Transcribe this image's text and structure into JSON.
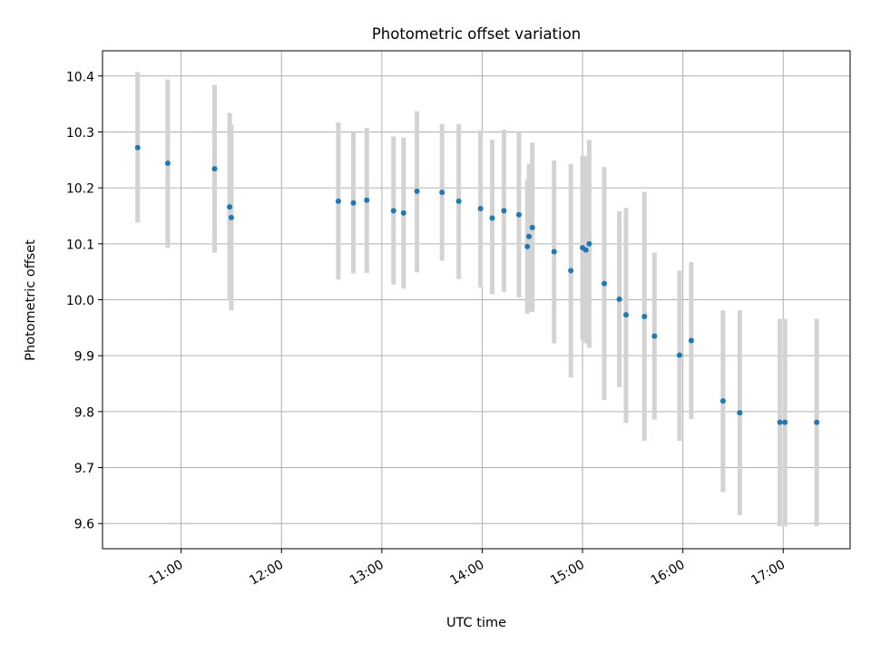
{
  "chart_data": {
    "type": "scatter",
    "title": "Photometric offset variation",
    "xlabel": "UTC time",
    "ylabel": "Photometric offset",
    "xlim": [
      "10:13",
      "17:40"
    ],
    "ylim": [
      9.555,
      10.445
    ],
    "grid": true,
    "legend": "none",
    "x_ticks": [
      "11:00",
      "12:00",
      "13:00",
      "14:00",
      "15:00",
      "16:00",
      "17:00"
    ],
    "y_ticks": [
      "9.6",
      "9.7",
      "9.8",
      "9.9",
      "10.0",
      "10.1",
      "10.2",
      "10.3",
      "10.4"
    ],
    "colors": {
      "point": "#1f77b4",
      "errorbar": "#d3d3d3",
      "grid": "#b0b0b0"
    },
    "series": [
      {
        "points": [
          {
            "x": "10:34",
            "y": 10.272,
            "err": [
              10.138,
              10.407
            ]
          },
          {
            "x": "10:52",
            "y": 10.244,
            "err": [
              10.093,
              10.394
            ]
          },
          {
            "x": "11:20",
            "y": 10.234,
            "err": [
              10.084,
              10.384
            ]
          },
          {
            "x": "11:29",
            "y": 10.166,
            "err": [
              9.999,
              10.334
            ]
          },
          {
            "x": "11:30",
            "y": 10.147,
            "err": [
              9.981,
              10.313
            ]
          },
          {
            "x": "12:34",
            "y": 10.176,
            "err": [
              10.036,
              10.317
            ]
          },
          {
            "x": "12:43",
            "y": 10.173,
            "err": [
              10.047,
              10.3
            ]
          },
          {
            "x": "12:51",
            "y": 10.178,
            "err": [
              10.048,
              10.307
            ]
          },
          {
            "x": "13:07",
            "y": 10.159,
            "err": [
              10.027,
              10.292
            ]
          },
          {
            "x": "13:13",
            "y": 10.155,
            "err": [
              10.02,
              10.29
            ]
          },
          {
            "x": "13:21",
            "y": 10.194,
            "err": [
              10.049,
              10.337
            ]
          },
          {
            "x": "13:36",
            "y": 10.192,
            "err": [
              10.07,
              10.314
            ]
          },
          {
            "x": "13:46",
            "y": 10.176,
            "err": [
              10.037,
              10.314
            ]
          },
          {
            "x": "13:59",
            "y": 10.163,
            "err": [
              10.022,
              10.303
            ]
          },
          {
            "x": "14:06",
            "y": 10.146,
            "err": [
              10.01,
              10.286
            ]
          },
          {
            "x": "14:13",
            "y": 10.159,
            "err": [
              10.014,
              10.304
            ]
          },
          {
            "x": "14:22",
            "y": 10.152,
            "err": [
              10.004,
              10.3
            ]
          },
          {
            "x": "14:27",
            "y": 10.095,
            "err": [
              9.975,
              10.215
            ]
          },
          {
            "x": "14:28",
            "y": 10.113,
            "err": [
              9.982,
              10.243
            ]
          },
          {
            "x": "14:30",
            "y": 10.129,
            "err": [
              9.978,
              10.281
            ]
          },
          {
            "x": "14:43",
            "y": 10.086,
            "err": [
              9.922,
              10.249
            ]
          },
          {
            "x": "14:53",
            "y": 10.052,
            "err": [
              9.861,
              10.243
            ]
          },
          {
            "x": "15:00",
            "y": 10.093,
            "err": [
              9.928,
              10.257
            ]
          },
          {
            "x": "15:02",
            "y": 10.089,
            "err": [
              9.922,
              10.257
            ]
          },
          {
            "x": "15:04",
            "y": 10.1,
            "err": [
              9.914,
              10.286
            ]
          },
          {
            "x": "15:13",
            "y": 10.029,
            "err": [
              9.821,
              10.237
            ]
          },
          {
            "x": "15:22",
            "y": 10.001,
            "err": [
              9.844,
              10.158
            ]
          },
          {
            "x": "15:26",
            "y": 9.973,
            "err": [
              9.78,
              10.164
            ]
          },
          {
            "x": "15:37",
            "y": 9.97,
            "err": [
              9.748,
              10.193
            ]
          },
          {
            "x": "15:43",
            "y": 9.935,
            "err": [
              9.786,
              10.084
            ]
          },
          {
            "x": "15:58",
            "y": 9.901,
            "err": [
              9.748,
              10.052
            ]
          },
          {
            "x": "16:05",
            "y": 9.927,
            "err": [
              9.787,
              10.067
            ]
          },
          {
            "x": "16:24",
            "y": 9.819,
            "err": [
              9.656,
              9.981
            ]
          },
          {
            "x": "16:34",
            "y": 9.798,
            "err": [
              9.615,
              9.981
            ]
          },
          {
            "x": "16:58",
            "y": 9.781,
            "err": [
              9.595,
              9.966
            ]
          },
          {
            "x": "17:01",
            "y": 9.781,
            "err": [
              9.595,
              9.966
            ]
          },
          {
            "x": "17:20",
            "y": 9.781,
            "err": [
              9.595,
              9.966
            ]
          }
        ]
      }
    ]
  }
}
